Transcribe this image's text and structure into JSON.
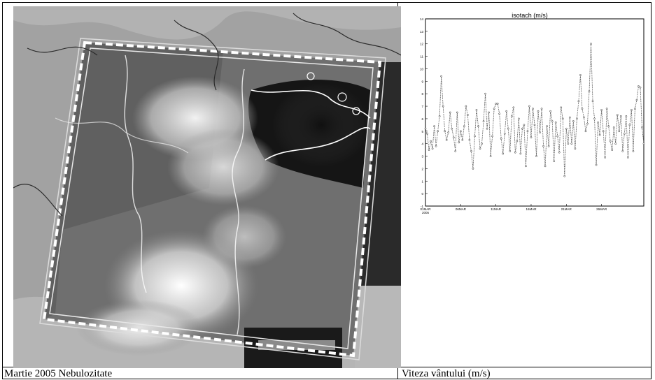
{
  "captions": {
    "left": "Martie 2005 Nebulozitate",
    "right": "Viteza vântului (m/s)"
  },
  "satellite_image": {
    "icon": "satellite-cloud-map-icon"
  },
  "chart_data": {
    "type": "line",
    "title": "isotach (m/s)",
    "xlabel": "",
    "ylabel": "",
    "ylim": [
      -1,
      14
    ],
    "y_ticks": [
      "-1",
      "0",
      "1",
      "2",
      "3",
      "4",
      "5",
      "6",
      "7",
      "8",
      "9",
      "10",
      "11",
      "12",
      "13",
      "14"
    ],
    "x_tick_labels": [
      "01MAR\n2005",
      "06MAR",
      "11MAR",
      "16MAR",
      "21MAR",
      "26MAR"
    ],
    "x_ticks_at": [
      0,
      20,
      40,
      60,
      80,
      100
    ],
    "x_range": [
      0,
      124
    ],
    "grid": false,
    "series": [
      {
        "values": [
          5.2,
          4.8,
          3.5,
          4.2,
          3.6,
          5.4,
          3.8,
          5.0,
          6.2,
          9.4,
          7.0,
          5.0,
          4.3,
          4.9,
          6.5,
          5.2,
          4.5,
          3.4,
          6.5,
          4.1,
          5.0,
          4.3,
          5.4,
          7.0,
          6.3,
          4.3,
          3.4,
          2.0,
          4.6,
          6.7,
          5.4,
          3.6,
          4.0,
          5.8,
          8.0,
          5.2,
          6.5,
          3.0,
          4.6,
          6.8,
          7.2,
          7.2,
          6.4,
          4.4,
          3.2,
          4.8,
          6.6,
          5.2,
          3.4,
          6.2,
          6.9,
          3.3,
          4.2,
          6.0,
          3.2,
          5.2,
          5.5,
          2.2,
          5.0,
          7.0,
          4.5,
          6.8,
          5.5,
          3.0,
          6.6,
          4.9,
          6.8,
          3.8,
          2.2,
          5.4,
          3.8,
          6.6,
          5.8,
          2.6,
          5.7,
          4.6,
          3.3,
          6.9,
          6.0,
          1.4,
          5.2,
          4.0,
          6.1,
          4.0,
          5.8,
          3.6,
          6.0,
          7.4,
          9.5,
          6.8,
          6.1,
          5.0,
          5.6,
          8.2,
          12.0,
          7.4,
          6.0,
          2.3,
          5.7,
          4.7,
          6.7,
          5.0,
          2.9,
          6.8,
          5.4,
          4.2,
          3.5,
          5.3,
          4.0,
          6.3,
          5.0,
          6.2,
          3.4,
          4.8,
          6.2,
          2.9,
          5.5,
          6.7,
          3.4,
          6.8,
          7.5,
          8.6,
          8.5,
          5.3,
          4.0
        ]
      }
    ]
  }
}
